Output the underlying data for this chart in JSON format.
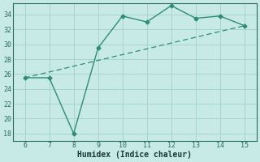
{
  "x": [
    6,
    7,
    8,
    9,
    10,
    11,
    12,
    13,
    14,
    15
  ],
  "y": [
    25.5,
    25.5,
    18,
    29.5,
    33.8,
    33.0,
    35.2,
    33.5,
    33.8,
    32.5
  ],
  "trend_x": [
    6,
    15
  ],
  "trend_y": [
    25.5,
    32.5
  ],
  "line_color": "#2e8b7a",
  "bg_color": "#c8eae6",
  "grid_color": "#a8d4ce",
  "xlabel": "Humidex (Indice chaleur)",
  "xlim": [
    5.5,
    15.5
  ],
  "ylim": [
    17,
    35.5
  ],
  "xticks": [
    6,
    7,
    8,
    9,
    10,
    11,
    12,
    13,
    14,
    15
  ],
  "yticks": [
    18,
    20,
    22,
    24,
    26,
    28,
    30,
    32,
    34
  ],
  "tick_color": "#2a6b60",
  "label_color": "#1a3a34",
  "spine_color": "#2a6b60"
}
